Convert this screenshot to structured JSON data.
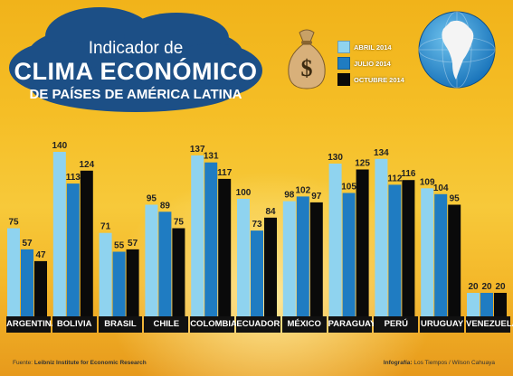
{
  "title": {
    "line1": "Indicador de",
    "line2": "CLIMA ECONÓMICO",
    "line3": "DE PAÍSES DE AMÉRICA LATINA"
  },
  "legend": [
    {
      "label": "ABRIL 2014",
      "color": "#8fd3ef"
    },
    {
      "label": "JULIO 2014",
      "color": "#1f7cc2"
    },
    {
      "label": "OCTUBRE 2014",
      "color": "#0a0a0a"
    }
  ],
  "icons": {
    "moneybag": "money-bag-icon",
    "globe": "globe-icon"
  },
  "chart_data": {
    "type": "bar",
    "categories": [
      "ARGENTINA",
      "BOLIVIA",
      "BRASIL",
      "CHILE",
      "COLOMBIA",
      "ECUADOR",
      "MÉXICO",
      "PARAGUAY",
      "PERÚ",
      "URUGUAY",
      "VENEZUELA"
    ],
    "series": [
      {
        "name": "ABRIL 2014",
        "values": [
          75,
          140,
          71,
          95,
          137,
          100,
          98,
          130,
          134,
          109,
          20
        ]
      },
      {
        "name": "JULIO 2014",
        "values": [
          57,
          113,
          55,
          89,
          131,
          73,
          102,
          105,
          112,
          104,
          20
        ]
      },
      {
        "name": "OCTUBRE 2014",
        "values": [
          47,
          124,
          57,
          75,
          117,
          84,
          97,
          125,
          116,
          95,
          20
        ]
      }
    ],
    "ylim": [
      0,
      160
    ],
    "grid": false,
    "legend_position": "top-right",
    "data_labels": true
  },
  "footer": {
    "source_prefix": "Fuente: ",
    "source": "Leibniz Institute for Economic Research",
    "credit_prefix": "Infografía: ",
    "credit": "Los Tiempos / Wilson Cahuaya"
  }
}
